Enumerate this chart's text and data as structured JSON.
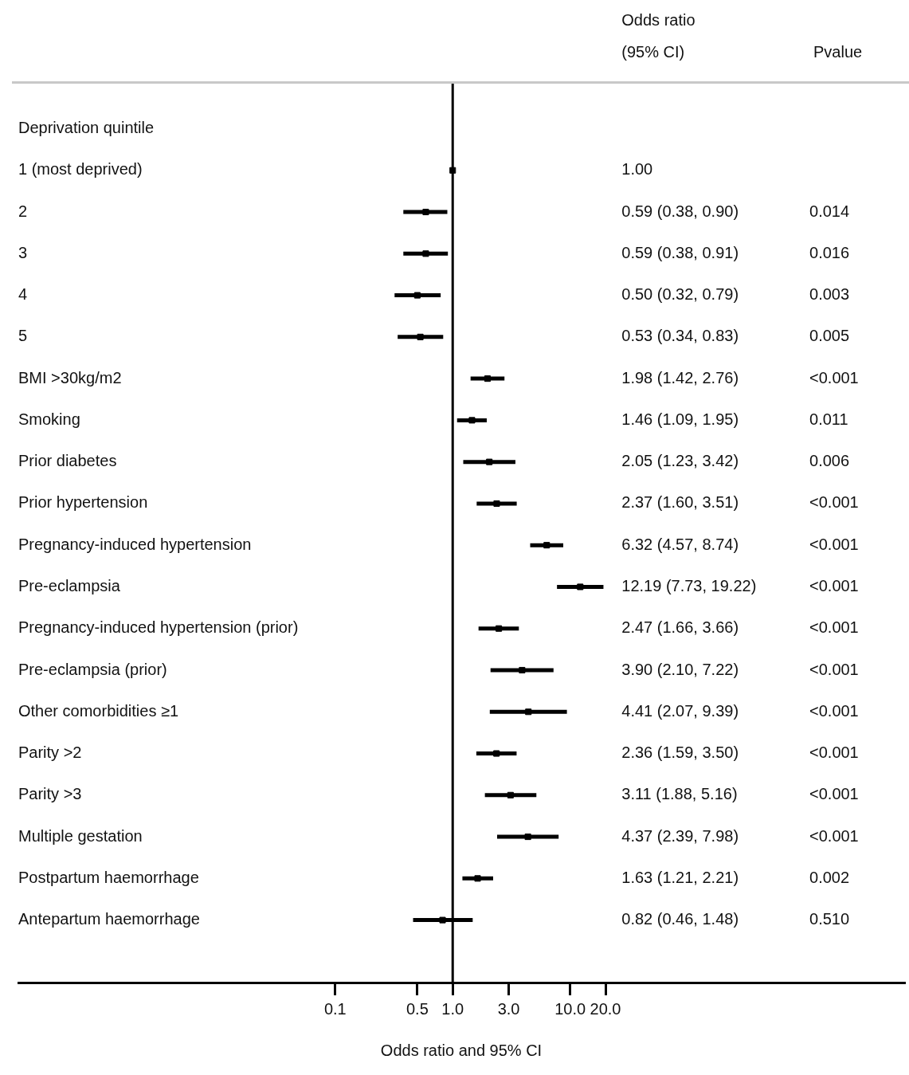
{
  "chart_data": {
    "type": "scatter",
    "orientation": "horizontal",
    "categories": [
      "Deprivation quintile",
      "1 (most deprived)",
      "2",
      "3",
      "4",
      "5",
      "BMI >30kg/m2",
      "Smoking",
      "Prior diabetes",
      "Prior hypertension",
      "Pregnancy-induced hypertension",
      "Pre-eclampsia",
      "Pregnancy-induced hypertension (prior)",
      "Pre-eclampsia (prior)",
      "Other comorbidities ≥1",
      "Parity >2",
      "Parity >3",
      "Multiple gestation",
      "Postpartum haemorrhage",
      "Antepartum haemorrhage"
    ],
    "values": [
      null,
      1.0,
      0.59,
      0.59,
      0.5,
      0.53,
      1.98,
      1.46,
      2.05,
      2.37,
      6.32,
      12.19,
      2.47,
      3.9,
      4.41,
      2.36,
      3.11,
      4.37,
      1.63,
      0.82
    ],
    "errors": [
      null,
      null,
      [
        0.38,
        0.9
      ],
      [
        0.38,
        0.91
      ],
      [
        0.32,
        0.79
      ],
      [
        0.34,
        0.83
      ],
      [
        1.42,
        2.76
      ],
      [
        1.09,
        1.95
      ],
      [
        1.23,
        3.42
      ],
      [
        1.6,
        3.51
      ],
      [
        4.57,
        8.74
      ],
      [
        7.73,
        19.22
      ],
      [
        1.66,
        3.66
      ],
      [
        2.1,
        7.22
      ],
      [
        2.07,
        9.39
      ],
      [
        1.59,
        3.5
      ],
      [
        1.88,
        5.16
      ],
      [
        2.39,
        7.98
      ],
      [
        1.21,
        2.21
      ],
      [
        0.46,
        1.48
      ]
    ],
    "color": "#000000",
    "marker": "square",
    "log": "x",
    "xlim": [
      0.0002,
      7000
    ],
    "xticks": [
      {
        "value": 0.1,
        "label": "0.1"
      },
      {
        "value": 0.5,
        "label": "0.5"
      },
      {
        "value": 1,
        "label": "1.0"
      },
      {
        "value": 3,
        "label": "3.0"
      },
      {
        "value": 10,
        "label": "10.0"
      },
      {
        "value": 20,
        "label": "20.0"
      }
    ],
    "xlabel": "Odds ratio and 95% CI",
    "ref_lines": [
      {
        "axis": "x",
        "value": 1,
        "color": "#000000"
      }
    ],
    "annotations": [
      "Odds ratio",
      "(95% CI)",
      "Pvalue",
      "1.00",
      "0.59 (0.38, 0.90)",
      "0.59 (0.38, 0.91)",
      "0.50 (0.32, 0.79)",
      "0.53 (0.34, 0.83)",
      "1.98 (1.42, 2.76)",
      "1.46 (1.09, 1.95)",
      "2.05 (1.23, 3.42)",
      "2.37 (1.60, 3.51)",
      "6.32 (4.57, 8.74)",
      "12.19 (7.73, 19.22)",
      "2.47 (1.66, 3.66)",
      "3.90 (2.10, 7.22)",
      "4.41 (2.07, 9.39)",
      "2.36 (1.59, 3.50)",
      "3.11 (1.88, 5.16)",
      "4.37 (2.39, 7.98)",
      "1.63 (1.21, 2.21)",
      "0.82 (0.46, 1.48)",
      "0.014",
      "0.016",
      "0.003",
      "0.005",
      "<0.001",
      "0.011",
      "0.006",
      "<0.001",
      "<0.001",
      "<0.001",
      "<0.001",
      "<0.001",
      "<0.001",
      "<0.001",
      "<0.001",
      "<0.001",
      "0.002",
      "0.510"
    ]
  }
}
